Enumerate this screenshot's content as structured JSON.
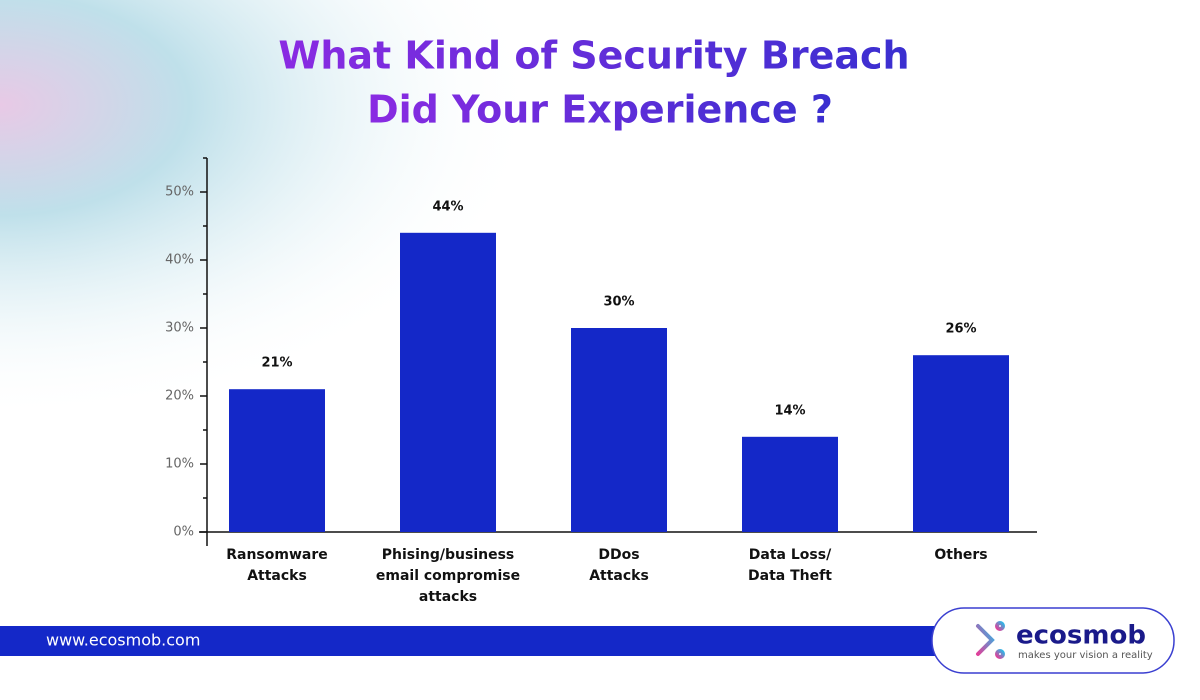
{
  "chart_data": {
    "type": "bar",
    "title": [
      "What Kind of Security Breach",
      "Did Your Experience ?"
    ],
    "categories": [
      [
        "Ransomware",
        "Attacks"
      ],
      [
        "Phising/business",
        "email compromise",
        "attacks"
      ],
      [
        "DDos",
        "Attacks"
      ],
      [
        "Data Loss/",
        "Data Theft"
      ],
      [
        "Others"
      ]
    ],
    "values": [
      21,
      44,
      30,
      14,
      26
    ],
    "value_labels": [
      "21%",
      "44%",
      "30%",
      "14%",
      "26%"
    ],
    "color": "#1428c8",
    "ylim": [
      0,
      55
    ],
    "yticks": [
      {
        "value": 0,
        "label": "0%"
      },
      {
        "value": 10,
        "label": "10%"
      },
      {
        "value": 20,
        "label": "20%"
      },
      {
        "value": 30,
        "label": "30%"
      },
      {
        "value": 40,
        "label": "40%"
      },
      {
        "value": 50,
        "label": "50%"
      }
    ],
    "minor_yticks": [
      5,
      15,
      25,
      35,
      45,
      55
    ]
  },
  "footer": {
    "url": "www.ecosmob.com",
    "brand": "ecosmob",
    "tagline": "makes your vision a reality"
  }
}
